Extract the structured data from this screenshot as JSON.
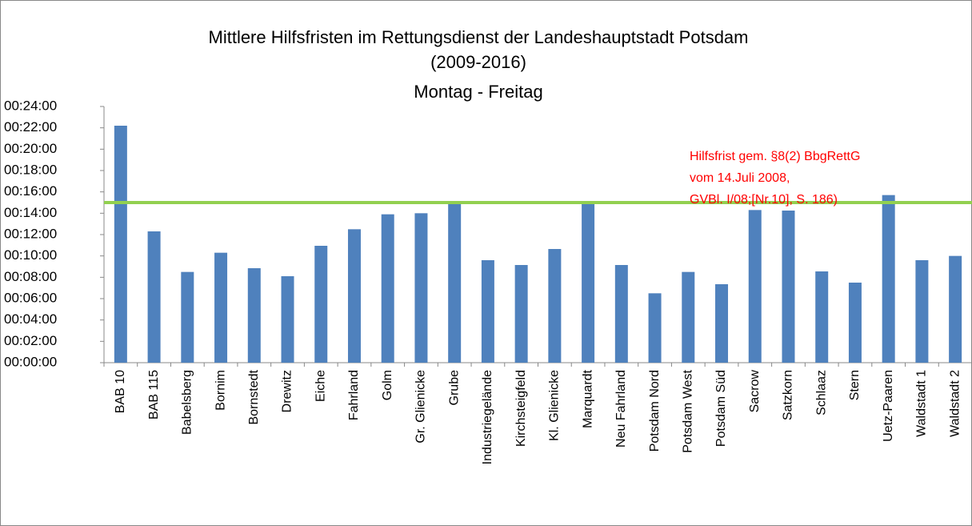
{
  "chart_data": {
    "type": "bar",
    "title": "Mittlere Hilfsfristen im Rettungsdienst der Landeshauptstadt Potsdam",
    "subtitle": [
      "(2009-2016)",
      "Montag - Freitag"
    ],
    "annotation": [
      "Hilfsfrist gem.  §8(2) BbgRettG",
      "vom 14.Juli 2008,",
      " GVBl. I/08;[Nr.10], S. 186)"
    ],
    "reference_line": {
      "value": 15,
      "color": "#92d050"
    },
    "categories": [
      "BAB 10",
      "BAB 115",
      "Babelsberg",
      "Bornim",
      "Bornstedt",
      "Drewitz",
      "Eiche",
      "Fahrland",
      "Golm",
      "Gr. Glienicke",
      "Grube",
      "Industriegelände",
      "Kirchsteigfeld",
      "Kl. Glienicke",
      "Marquardt",
      "Neu Fahrland",
      "Potsdam Nord",
      "Potsdam West",
      "Potsdam Süd",
      "Sacrow",
      "Satzkorn",
      "Schlaaz",
      "Stern",
      "Uetz-Paaren",
      "Waldstadt 1",
      "Waldstadt  2"
    ],
    "values": [
      22.2,
      12.3,
      8.5,
      10.3,
      8.85,
      8.1,
      10.95,
      12.5,
      13.9,
      14.0,
      15.1,
      9.6,
      9.15,
      10.65,
      15.1,
      9.15,
      6.5,
      8.5,
      7.35,
      14.3,
      14.25,
      8.55,
      7.5,
      15.7,
      9.6,
      10.0
    ],
    "color": "#4f81bd",
    "ylim": [
      0,
      24
    ],
    "yticks": [
      {
        "value": 0,
        "label": "00:00:00"
      },
      {
        "value": 2,
        "label": "00:02:00"
      },
      {
        "value": 4,
        "label": "00:04:00"
      },
      {
        "value": 6,
        "label": "00:06:00"
      },
      {
        "value": 8,
        "label": "00:08:00"
      },
      {
        "value": 10,
        "label": "00:10:00"
      },
      {
        "value": 12,
        "label": "00:12:00"
      },
      {
        "value": 14,
        "label": "00:14:00"
      },
      {
        "value": 16,
        "label": "00:16:00"
      },
      {
        "value": 18,
        "label": "00:18:00"
      },
      {
        "value": 20,
        "label": "00:20:00"
      },
      {
        "value": 22,
        "label": "00:22:00"
      },
      {
        "value": 24,
        "label": "00:24:00"
      }
    ],
    "grid": false
  }
}
